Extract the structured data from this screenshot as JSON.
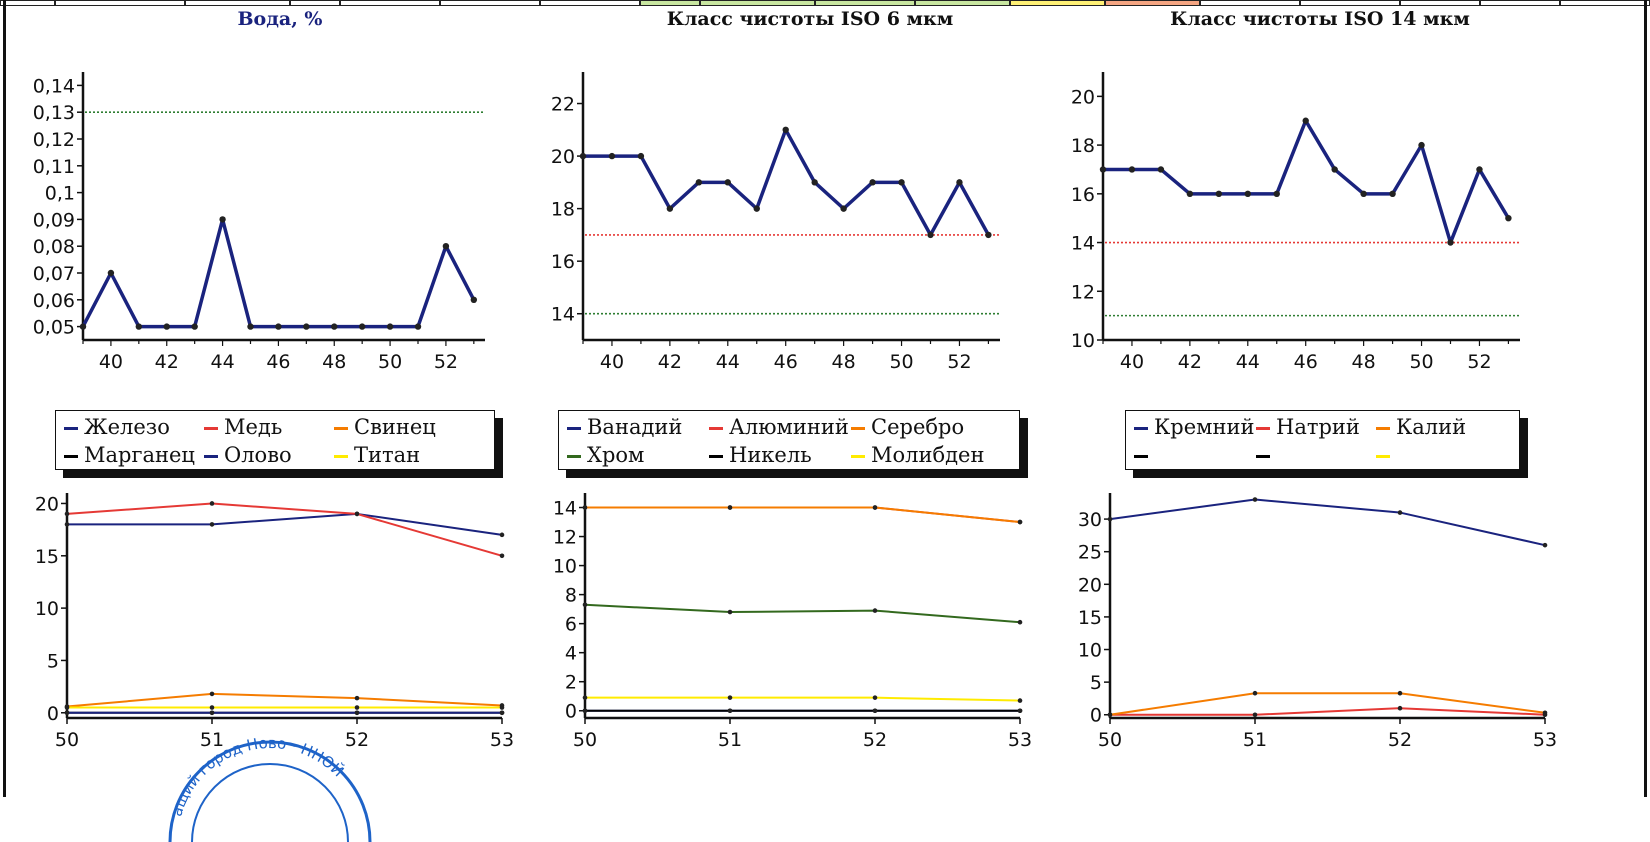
{
  "chart_data": [
    {
      "type": "line",
      "title": "Вода, %",
      "x": [
        39,
        40,
        41,
        42,
        43,
        44,
        45,
        46,
        47,
        48,
        49,
        50,
        51,
        52,
        53
      ],
      "series": [
        {
          "values": [
            0.05,
            0.07,
            0.05,
            0.05,
            0.05,
            0.09,
            0.05,
            0.05,
            0.05,
            0.05,
            0.05,
            0.05,
            0.05,
            0.08,
            0.06
          ]
        }
      ],
      "reference_lines": [
        {
          "value": 0.13,
          "color": "#2e7d32"
        }
      ],
      "xlim": [
        39,
        53.4
      ],
      "ylim": [
        0.045,
        0.145
      ],
      "xticks": [
        40,
        42,
        44,
        46,
        48,
        50,
        52
      ],
      "yticks": [
        0.05,
        0.06,
        0.07,
        0.08,
        0.09,
        0.1,
        0.11,
        0.12,
        0.13,
        0.14
      ],
      "ytick_labels": [
        "0,05",
        "0,06",
        "0,07",
        "0,08",
        "0,09",
        "0,1",
        "0,11",
        "0,12",
        "0,13",
        "0,14"
      ]
    },
    {
      "type": "line",
      "title": "Класс чистоты ISO 6 мкм",
      "x": [
        39,
        40,
        41,
        42,
        43,
        44,
        45,
        46,
        47,
        48,
        49,
        50,
        51,
        52,
        53
      ],
      "series": [
        {
          "values": [
            20,
            20,
            20,
            18,
            19,
            19,
            18,
            21,
            19,
            18,
            19,
            19,
            17,
            19,
            17
          ]
        }
      ],
      "reference_lines": [
        {
          "value": 17,
          "color": "#e53935"
        },
        {
          "value": 14,
          "color": "#2e7d32"
        }
      ],
      "xlim": [
        39,
        53.4
      ],
      "ylim": [
        13,
        23.2
      ],
      "xticks": [
        40,
        42,
        44,
        46,
        48,
        50,
        52
      ],
      "yticks": [
        14,
        16,
        18,
        20,
        22
      ]
    },
    {
      "type": "line",
      "title": "Класс чистоты ISO 14 мкм",
      "x": [
        39,
        40,
        41,
        42,
        43,
        44,
        45,
        46,
        47,
        48,
        49,
        50,
        51,
        52,
        53
      ],
      "series": [
        {
          "values": [
            17,
            17,
            17,
            16,
            16,
            16,
            16,
            19,
            17,
            16,
            16,
            18,
            14,
            17,
            15
          ]
        }
      ],
      "reference_lines": [
        {
          "value": 14,
          "color": "#e53935"
        },
        {
          "value": 11,
          "color": "#2e7d32"
        }
      ],
      "xlim": [
        39,
        53.4
      ],
      "ylim": [
        10,
        21
      ],
      "xticks": [
        40,
        42,
        44,
        46,
        48,
        50,
        52
      ],
      "yticks": [
        10,
        12,
        14,
        16,
        18,
        20
      ]
    },
    {
      "type": "line",
      "x": [
        50,
        51,
        52,
        53
      ],
      "legend": [
        "Железо",
        "Медь",
        "Свинец",
        "Марганец",
        "Олово",
        "Титан"
      ],
      "series": [
        {
          "name": "Железо",
          "color": "#1a237e",
          "values": [
            18,
            18,
            19,
            17
          ]
        },
        {
          "name": "Медь",
          "color": "#e53935",
          "values": [
            19,
            20,
            19,
            15
          ]
        },
        {
          "name": "Свинец",
          "color": "#f57c00",
          "values": [
            0.6,
            1.8,
            1.4,
            0.7
          ]
        },
        {
          "name": "Марганец",
          "color": "#000000",
          "values": [
            0,
            0,
            0,
            0
          ]
        },
        {
          "name": "Олово",
          "color": "#1a237e",
          "values": [
            0,
            0,
            0,
            0
          ]
        },
        {
          "name": "Титан",
          "color": "#ffeb00",
          "values": [
            0.5,
            0.5,
            0.5,
            0.5
          ]
        }
      ],
      "xlim": [
        50,
        53
      ],
      "ylim": [
        -0.5,
        21
      ],
      "xticks": [
        50,
        51,
        52,
        53
      ],
      "yticks": [
        0,
        5,
        10,
        15,
        20
      ]
    },
    {
      "type": "line",
      "x": [
        50,
        51,
        52,
        53
      ],
      "legend": [
        "Ванадий",
        "Алюминий",
        "Серебро",
        "Хром",
        "Никель",
        "Молибден"
      ],
      "series": [
        {
          "name": "Ванадий",
          "color": "#1a237e",
          "values": [
            0,
            0,
            0,
            0
          ]
        },
        {
          "name": "Алюминий",
          "color": "#e53935",
          "values": [
            14,
            14,
            14,
            13
          ]
        },
        {
          "name": "Серебро",
          "color": "#f57c00",
          "values": [
            14,
            14,
            14,
            13
          ]
        },
        {
          "name": "Хром",
          "color": "#33691e",
          "values": [
            7.3,
            6.8,
            6.9,
            6.1
          ]
        },
        {
          "name": "Никель",
          "color": "#000000",
          "values": [
            0,
            0,
            0,
            0
          ]
        },
        {
          "name": "Молибден",
          "color": "#ffeb00",
          "values": [
            0.9,
            0.9,
            0.9,
            0.7
          ]
        }
      ],
      "xlim": [
        50,
        53
      ],
      "ylim": [
        -0.5,
        15
      ],
      "xticks": [
        50,
        51,
        52,
        53
      ],
      "yticks": [
        0,
        2,
        4,
        6,
        8,
        10,
        12,
        14
      ]
    },
    {
      "type": "line",
      "x": [
        50,
        51,
        52,
        53
      ],
      "legend": [
        "Кремний",
        "Натрий",
        "Калий",
        "",
        "",
        ""
      ],
      "series": [
        {
          "name": "Кремний",
          "color": "#1a237e",
          "values": [
            30,
            33,
            31,
            26
          ]
        },
        {
          "name": "Натрий",
          "color": "#e53935",
          "values": [
            0,
            0,
            1,
            0
          ]
        },
        {
          "name": "Калий",
          "color": "#f57c00",
          "values": [
            0,
            3.3,
            3.3,
            0.3
          ]
        }
      ],
      "xlim": [
        50,
        53
      ],
      "ylim": [
        -0.5,
        34
      ],
      "xticks": [
        50,
        51,
        52,
        53
      ],
      "yticks": [
        0,
        5,
        10,
        15,
        20,
        25,
        30
      ]
    }
  ],
  "top_strip_colors": [
    "#ffffff",
    "#ffffff",
    "#ffffff",
    "#ffffff",
    "#ffffff",
    "#ffffff",
    "#ffffff",
    "#c8e6a0",
    "#c8e6a0",
    "#c8e6a0",
    "#c8e6a0",
    "#fff176",
    "#f4a582",
    "#ffffff",
    "#ffffff",
    "#ffffff",
    "#ffffff",
    "#ffffff"
  ],
  "stamp": {
    "text": "ащий город Ново · ННОЙ",
    "color": "#1e63c8"
  }
}
